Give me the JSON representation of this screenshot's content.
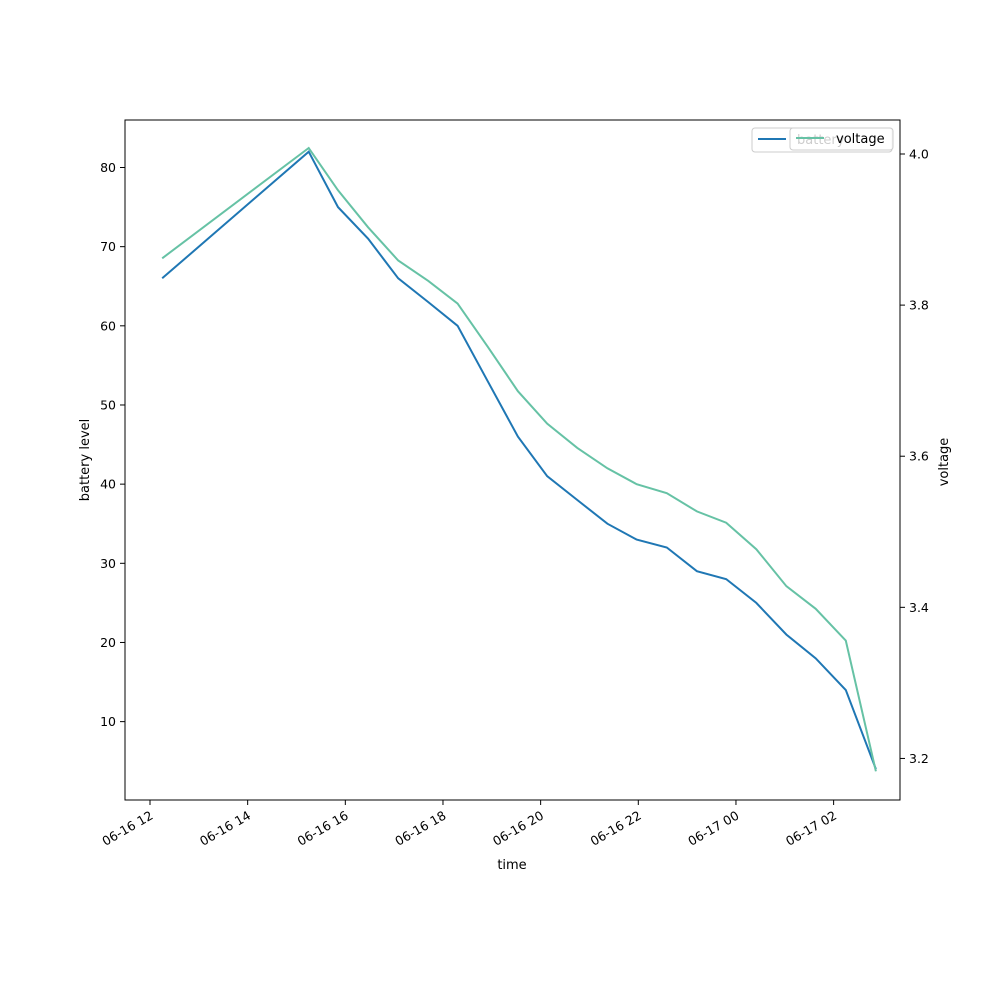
{
  "chart_data": {
    "type": "line",
    "xlabel": "time",
    "ylabel_left": "battery level",
    "ylabel_right": "voltage",
    "x": [
      "2020-06-16 12:15",
      "2020-06-16 15:15",
      "2020-06-16 15:51",
      "2020-06-16 16:28",
      "2020-06-16 17:05",
      "2020-06-16 17:42",
      "2020-06-16 18:18",
      "2020-06-16 18:55",
      "2020-06-16 19:32",
      "2020-06-16 20:08",
      "2020-06-16 20:45",
      "2020-06-16 21:22",
      "2020-06-16 21:58",
      "2020-06-16 22:35",
      "2020-06-16 23:12",
      "2020-06-16 23:48",
      "2020-06-17 00:25",
      "2020-06-17 01:02",
      "2020-06-17 01:38",
      "2020-06-17 02:15",
      "2020-06-17 02:52"
    ],
    "series": [
      {
        "name": "battery",
        "axis": "left",
        "color": "#1f77b4",
        "values": [
          66,
          82,
          75,
          71,
          66,
          63,
          60,
          53,
          46,
          41,
          38,
          35,
          33,
          32,
          29,
          28,
          25,
          21,
          18,
          14,
          4
        ]
      },
      {
        "name": "voltage",
        "axis": "right",
        "color": "#66c2a5",
        "values": [
          3.862,
          4.008,
          3.952,
          3.903,
          3.859,
          3.832,
          3.802,
          3.745,
          3.686,
          3.643,
          3.611,
          3.584,
          3.563,
          3.551,
          3.527,
          3.512,
          3.477,
          3.428,
          3.398,
          3.356,
          3.183
        ]
      }
    ],
    "x_ticks": [
      "06-16 12",
      "06-16 14",
      "06-16 16",
      "06-16 18",
      "06-16 20",
      "06-16 22",
      "06-17 00",
      "06-17 02"
    ],
    "y_left_ticks": [
      10,
      20,
      30,
      40,
      50,
      60,
      70,
      80
    ],
    "y_left_lim": [
      0.1,
      86
    ],
    "y_right_ticks": [
      "3.2",
      "3.4",
      "3.6",
      "3.8",
      "4.0"
    ],
    "y_right_lim": [
      3.145,
      4.045
    ],
    "legend_left": {
      "position": "top-right",
      "label": "battery"
    },
    "legend_right": {
      "position": "top-right",
      "label": "voltage"
    },
    "grid": false
  }
}
